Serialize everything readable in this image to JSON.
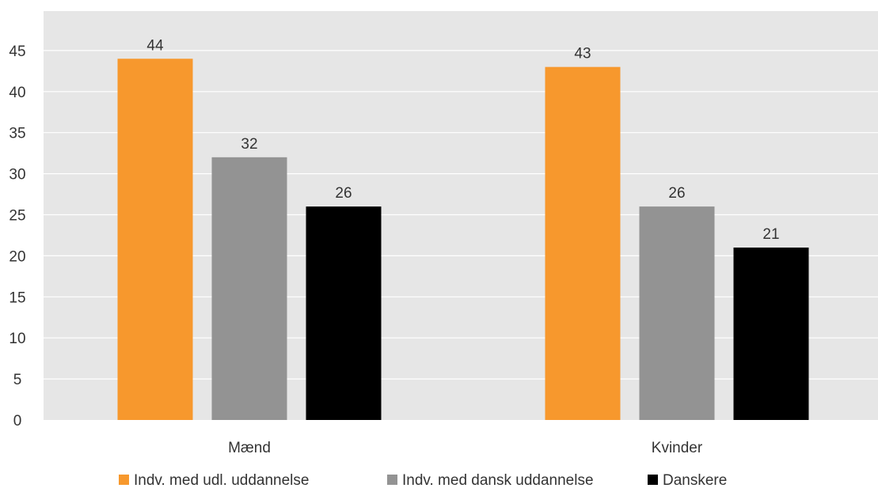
{
  "chart_data": {
    "type": "bar",
    "title": "",
    "xlabel": "",
    "ylabel": "",
    "categories": [
      "Mænd",
      "Kvinder"
    ],
    "series": [
      {
        "name": "Indv. med udl. uddannelse",
        "values": [
          44,
          43
        ],
        "color": "#F7982D"
      },
      {
        "name": "Indv. med dansk uddannelse",
        "values": [
          32,
          26
        ],
        "color": "#939393"
      },
      {
        "name": "Danskere",
        "values": [
          26,
          21
        ],
        "color": "#000000"
      }
    ],
    "ylim": [
      0,
      50
    ],
    "yticks": [
      0,
      5,
      10,
      15,
      20,
      25,
      30,
      35,
      40,
      45
    ],
    "grid": true,
    "plot_background": "#E6E6E6",
    "grid_color": "#FFFFFF",
    "legend_position": "bottom"
  }
}
